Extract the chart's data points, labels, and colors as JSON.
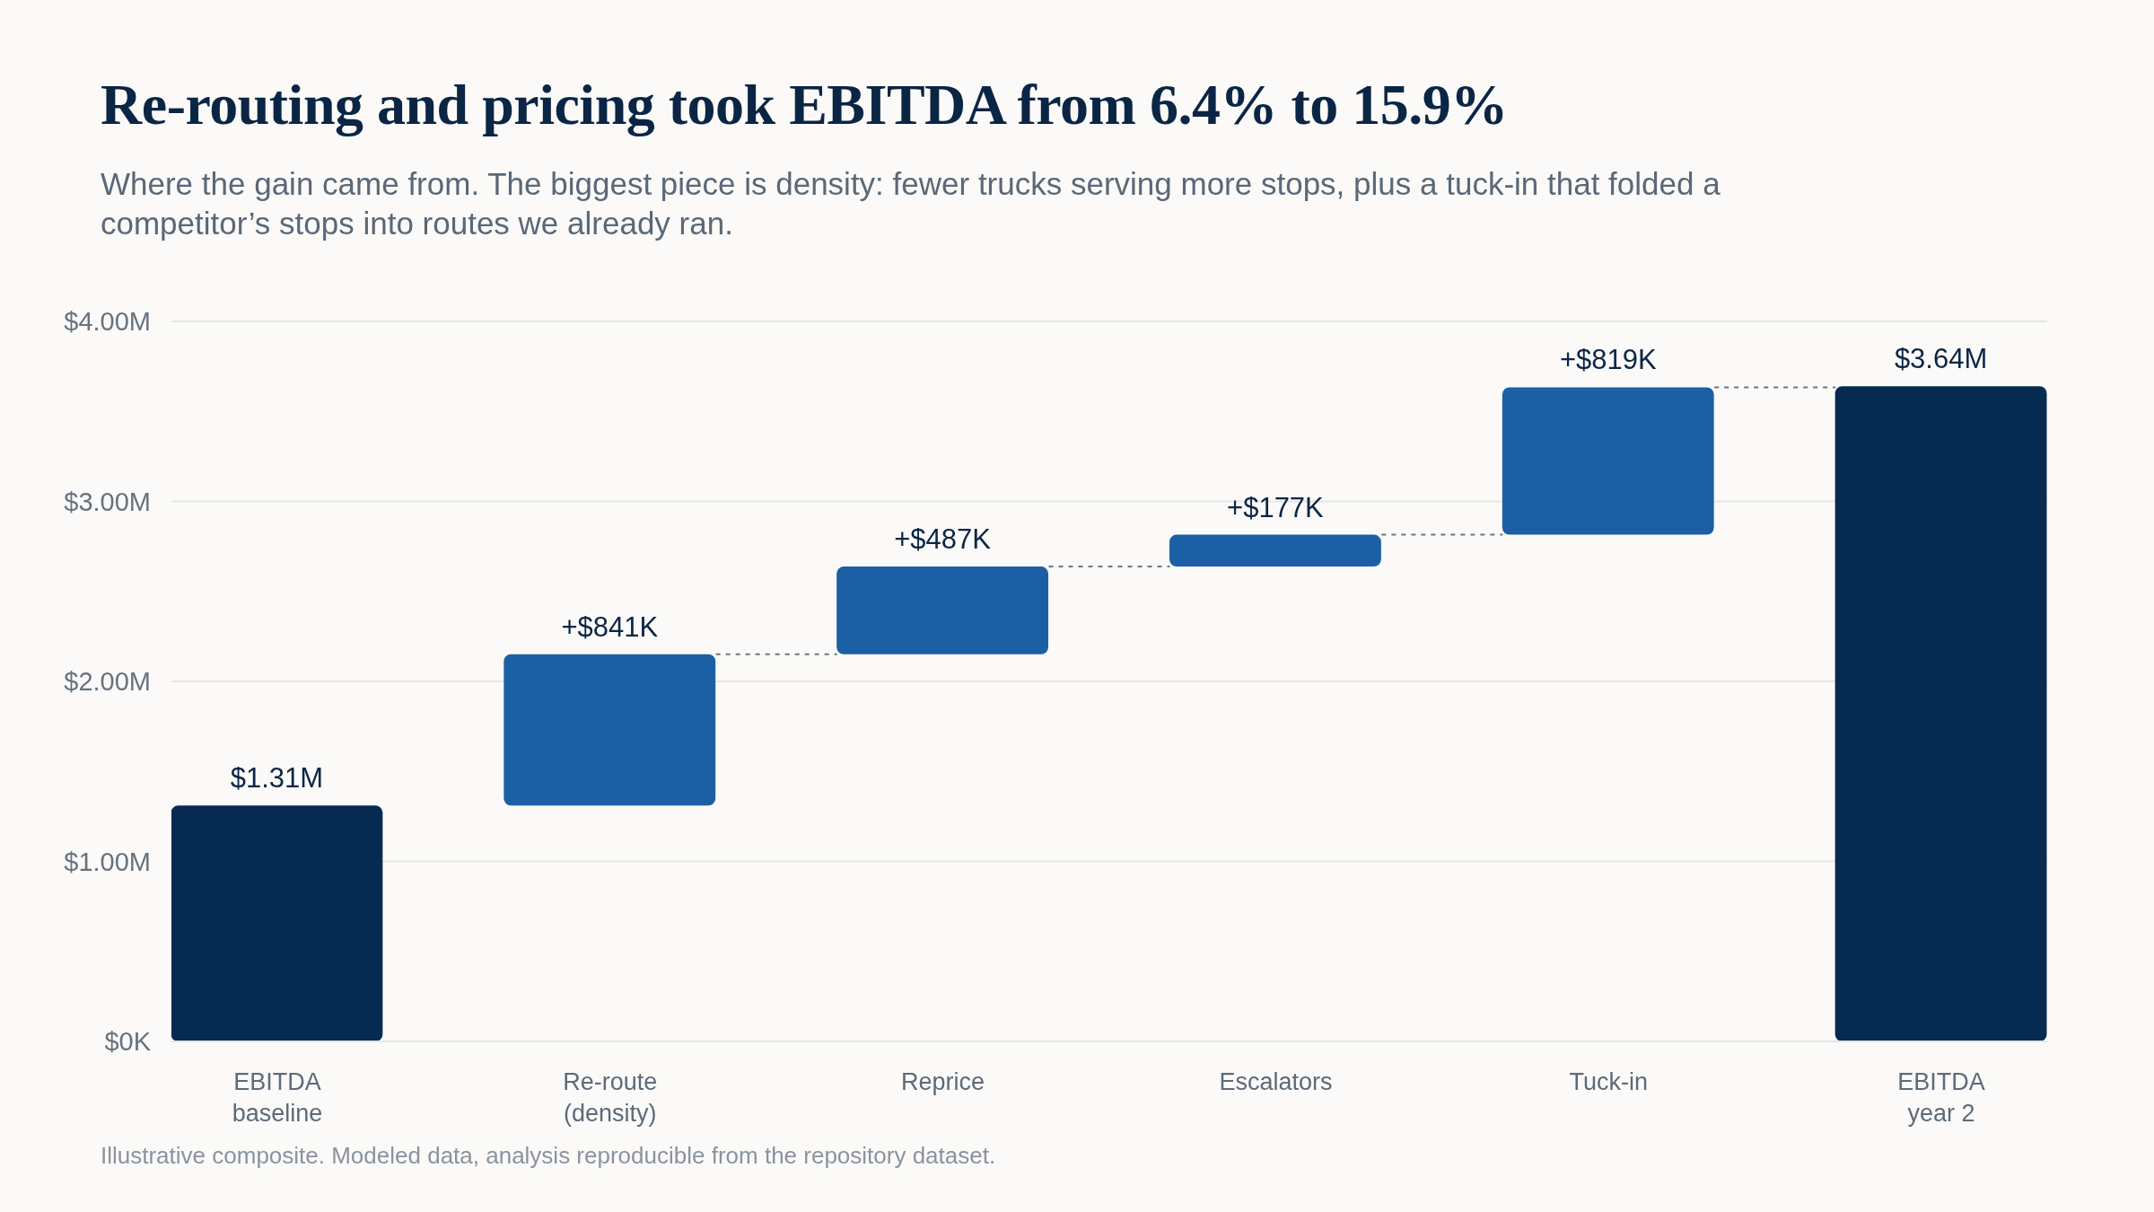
{
  "chart_data": {
    "type": "bar",
    "title": "Re-routing and pricing took EBITDA from 6.4% to 15.9%",
    "subtitle": "Where the gain came from. The biggest piece is density: fewer trucks serving more stops, plus a tuck-in that folded a competitor’s stops into routes we already ran.",
    "categories": [
      "EBITDA\nbaseline",
      "Re-route\n(density)",
      "Reprice",
      "Escalators",
      "Tuck-in",
      "EBITDA\nyear 2"
    ],
    "values": [
      1310000,
      841000,
      487000,
      177000,
      819000,
      3640000
    ],
    "base": [
      null,
      1310000,
      2151000,
      2638000,
      2815000,
      null
    ],
    "colors": [
      "#062a50",
      "#1b5fa5",
      "#1b5fa5",
      "#1b5fa5",
      "#1b5fa5",
      "#062a50"
    ],
    "value_labels": [
      "$1.31M",
      "+$841K",
      "+$487K",
      "+$177K",
      "+$819K",
      "$3.64M"
    ],
    "ylim": [
      0,
      4000000
    ],
    "yticks": [
      {
        "value": 0,
        "label": "$0K"
      },
      {
        "value": 1000000,
        "label": "$1.00M"
      },
      {
        "value": 2000000,
        "label": "$2.00M"
      },
      {
        "value": 3000000,
        "label": "$3.00M"
      },
      {
        "value": 4000000,
        "label": "$4.00M"
      }
    ],
    "grid": "y",
    "annotations": [
      "Illustrative composite. Modeled data, analysis reproducible from the repository dataset."
    ]
  }
}
